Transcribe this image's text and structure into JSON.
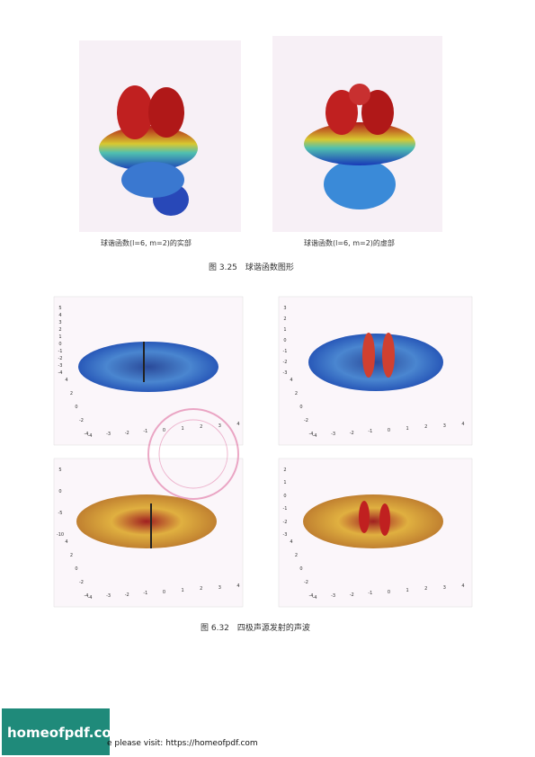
{
  "figure_3_25": {
    "left_caption": "球谐函数(l=6, m=2)的实部",
    "right_caption": "球谐函数(l=6, m=2)的虚部",
    "caption": "图 3.25　球谐函数图形"
  },
  "figure_6_32": {
    "panels": [
      {
        "z_ticks": [
          5,
          4,
          3,
          2,
          1,
          0,
          -1,
          -2,
          -3,
          -4
        ],
        "y_ticks": [
          4,
          2,
          0,
          -2,
          -4
        ],
        "x_ticks": [
          -4,
          -3,
          -2,
          -1,
          0,
          1,
          2,
          3,
          4
        ]
      },
      {
        "z_ticks": [
          3,
          2,
          1,
          0,
          -1,
          -2,
          -3
        ],
        "y_ticks": [
          4,
          2,
          0,
          -2,
          -4
        ],
        "x_ticks": [
          -4,
          -3,
          -2,
          -1,
          0,
          1,
          2,
          3,
          4
        ]
      },
      {
        "z_ticks": [
          5,
          0,
          -5,
          -10
        ],
        "y_ticks": [
          4,
          2,
          0,
          -2,
          -4
        ],
        "x_ticks": [
          -4,
          -3,
          -2,
          -1,
          0,
          1,
          2,
          3,
          4
        ]
      },
      {
        "z_ticks": [
          2,
          1,
          0,
          -1,
          -2,
          -3
        ],
        "y_ticks": [
          4,
          2,
          0,
          -2,
          -4
        ],
        "x_ticks": [
          -4,
          -3,
          -2,
          -1,
          0,
          1,
          2,
          3,
          4
        ]
      }
    ],
    "caption": "图 6.32　四极声源发射的声波"
  },
  "footer": {
    "logo": "homeofpdf.com",
    "text": "e please visit: https://homeofpdf.com"
  }
}
